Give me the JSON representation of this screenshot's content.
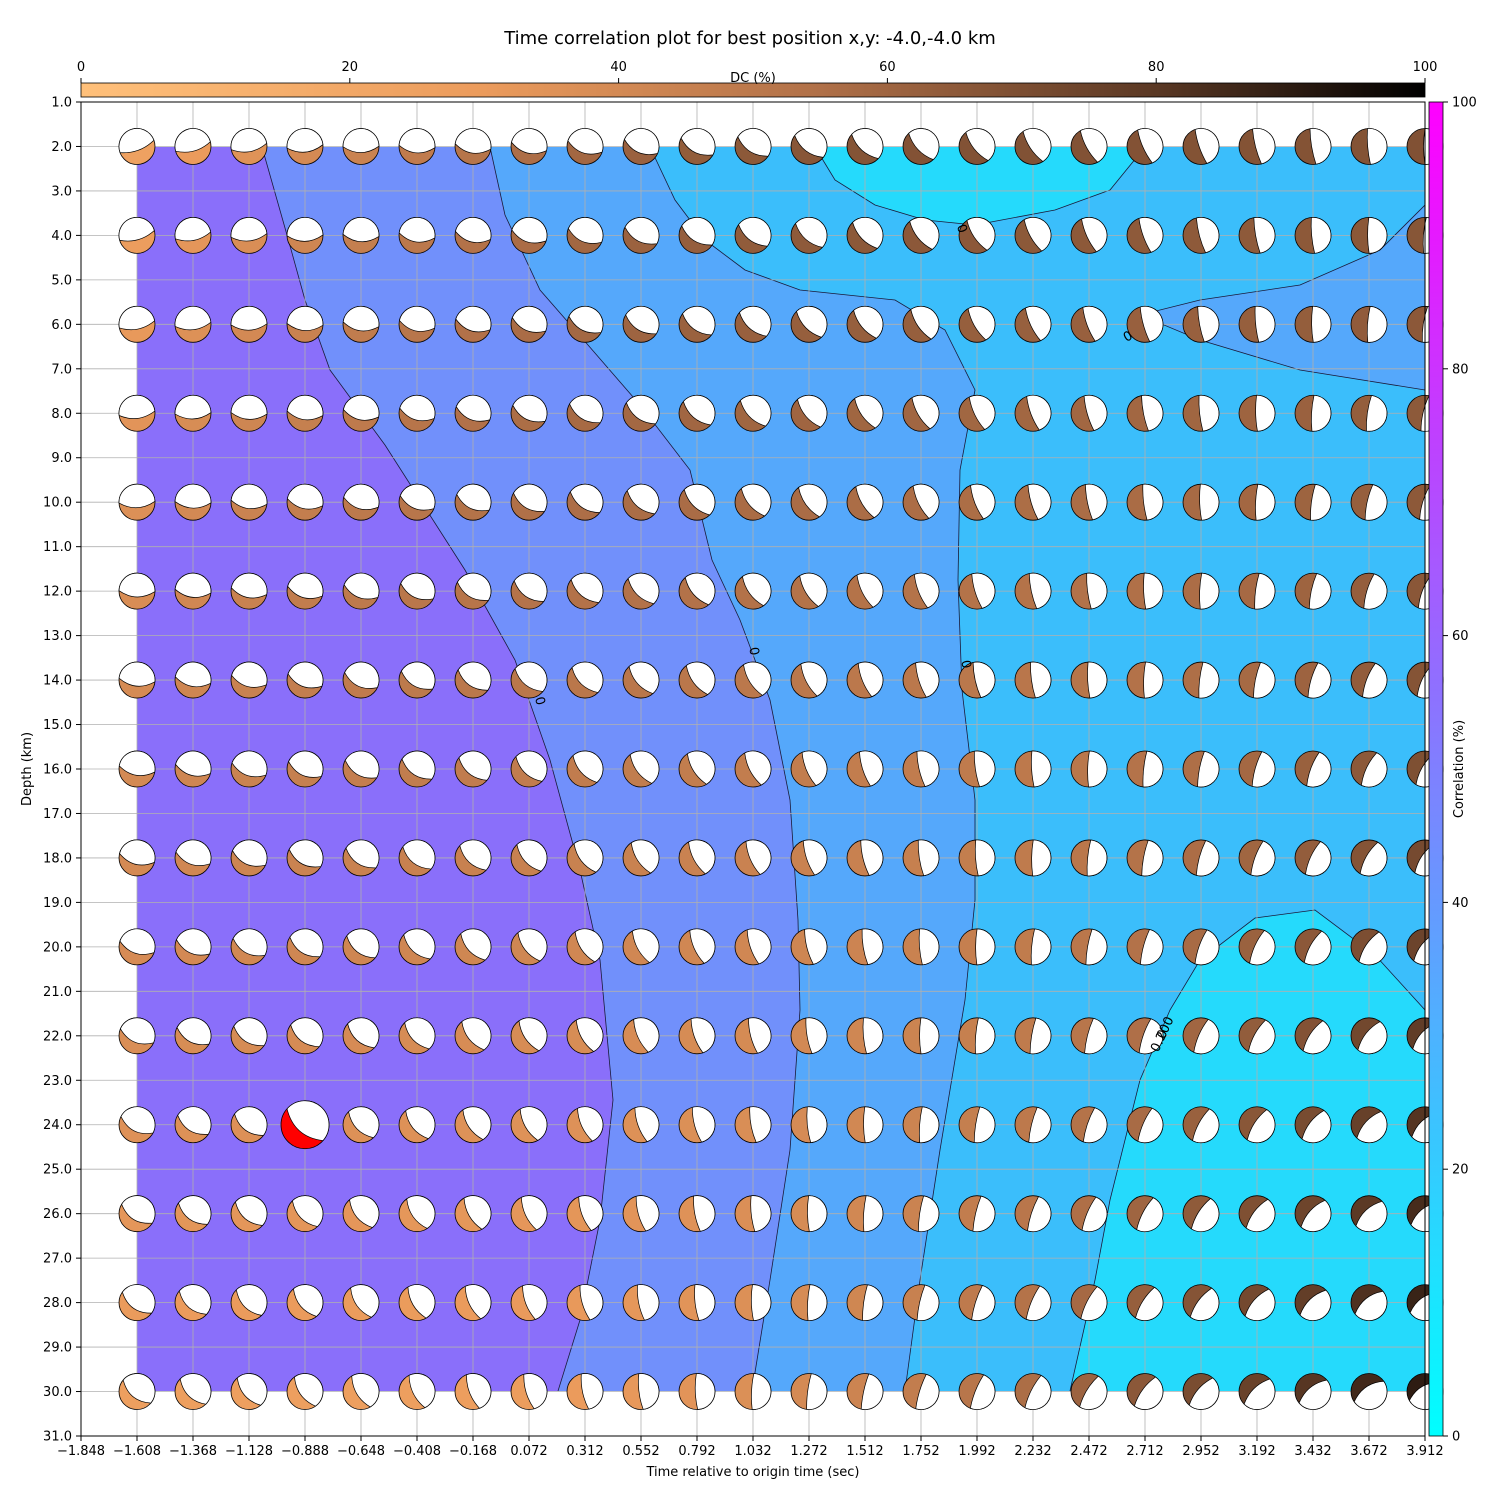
{
  "chart_data": {
    "type": "heatmap",
    "title": "Time correlation plot for best position x,y: -4.0,-4.0 km",
    "xlabel": "Time relative to origin time (sec)",
    "ylabel": "Depth (km)",
    "xlim": [
      -1.848,
      3.912
    ],
    "ylim": [
      31.0,
      1.0
    ],
    "x_ticks": [
      "−1.848",
      "−1.608",
      "−1.368",
      "−1.128",
      "−0.888",
      "−0.648",
      "−0.408",
      "−0.168",
      "0.072",
      "0.312",
      "0.552",
      "0.792",
      "1.032",
      "1.272",
      "1.512",
      "1.752",
      "1.992",
      "2.232",
      "2.472",
      "2.712",
      "2.952",
      "3.192",
      "3.432",
      "3.672",
      "3.912"
    ],
    "y_ticks": [
      "1.0",
      "2.0",
      "3.0",
      "4.0",
      "5.0",
      "6.0",
      "7.0",
      "8.0",
      "9.0",
      "10.0",
      "11.0",
      "12.0",
      "13.0",
      "14.0",
      "15.0",
      "16.0",
      "17.0",
      "18.0",
      "19.0",
      "20.0",
      "21.0",
      "22.0",
      "23.0",
      "24.0",
      "25.0",
      "26.0",
      "27.0",
      "28.0",
      "29.0",
      "30.0",
      "31.0"
    ],
    "times": [
      -1.608,
      -1.368,
      -1.128,
      -0.888,
      -0.648,
      -0.408,
      -0.168,
      0.072,
      0.312,
      0.552,
      0.792,
      1.032,
      1.272,
      1.512,
      1.752,
      1.992,
      2.232,
      2.472,
      2.712,
      2.952,
      3.192,
      3.432,
      3.672,
      3.912
    ],
    "depths": [
      2,
      4,
      6,
      8,
      10,
      12,
      14,
      16,
      18,
      20,
      22,
      24,
      26,
      28,
      30
    ],
    "correlation_regions": [
      {
        "level": "55-60",
        "color": "#8a6ffa"
      },
      {
        "level": "45-50",
        "color": "#7190fb"
      },
      {
        "level": "35-40",
        "color": "#55a8fb"
      },
      {
        "level": "25-30",
        "color": "#3bbefb"
      },
      {
        "level": "10-15",
        "color": "#25dafc"
      }
    ],
    "contour_labels": [
      "0",
      "0",
      "0",
      "0",
      "0",
      "0",
      "0.200"
    ],
    "best_solution": {
      "time": -0.888,
      "depth": 24.0,
      "color": "#ff0000"
    },
    "colorbar_dc": {
      "label": "DC (%)",
      "ticks": [
        "0",
        "20",
        "40",
        "60",
        "80",
        "100"
      ],
      "range": [
        0,
        100
      ]
    },
    "colorbar_correlation": {
      "label": "Correlation (%)",
      "ticks": [
        "0",
        "20",
        "40",
        "60",
        "80",
        "100"
      ],
      "range": [
        0,
        100
      ]
    }
  }
}
